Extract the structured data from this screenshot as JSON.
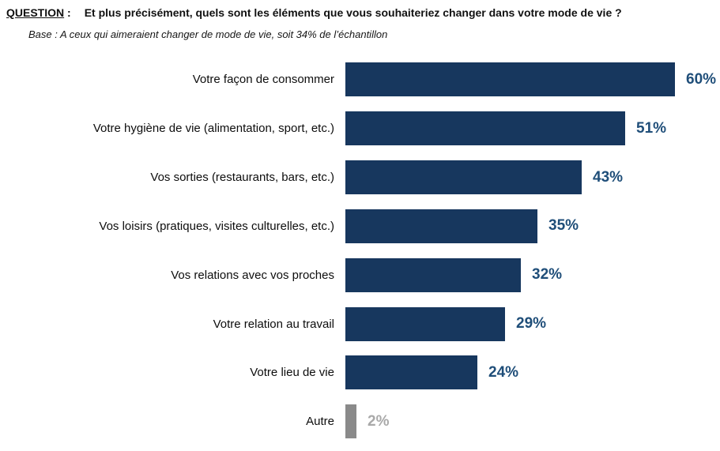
{
  "header": {
    "label": "QUESTION",
    "label_suffix": " :",
    "title": "Et plus précisément, quels sont les éléments que vous souhaiteriez changer dans votre mode de vie ?",
    "base_note": "Base : A ceux qui aimeraient changer de mode de vie, soit 34% de l’échantillon"
  },
  "chart_data": {
    "type": "bar",
    "orientation": "horizontal",
    "title": "",
    "xlabel": "",
    "ylabel": "",
    "categories": [
      "Votre façon de consommer",
      "Votre hygiène de vie (alimentation, sport, etc.)",
      "Vos sorties (restaurants, bars, etc.)",
      "Vos loisirs (pratiques, visites culturelles, etc.)",
      "Vos relations avec vos proches",
      "Votre relation au travail",
      "Votre lieu de vie",
      "Autre"
    ],
    "values": [
      60,
      51,
      43,
      35,
      32,
      29,
      24,
      2
    ],
    "values_display": [
      "60%",
      "51%",
      "43%",
      "35%",
      "32%",
      "29%",
      "24%",
      "2%"
    ],
    "xlim": [
      0,
      62
    ],
    "grid": false,
    "legend": "none",
    "bar_colors": [
      "#17375E",
      "#17375E",
      "#17375E",
      "#17375E",
      "#17375E",
      "#17375E",
      "#17375E",
      "#8A8A8A"
    ],
    "value_colors": [
      "#1F4E79",
      "#1F4E79",
      "#1F4E79",
      "#1F4E79",
      "#1F4E79",
      "#1F4E79",
      "#1F4E79",
      "#A9A9A9"
    ]
  }
}
